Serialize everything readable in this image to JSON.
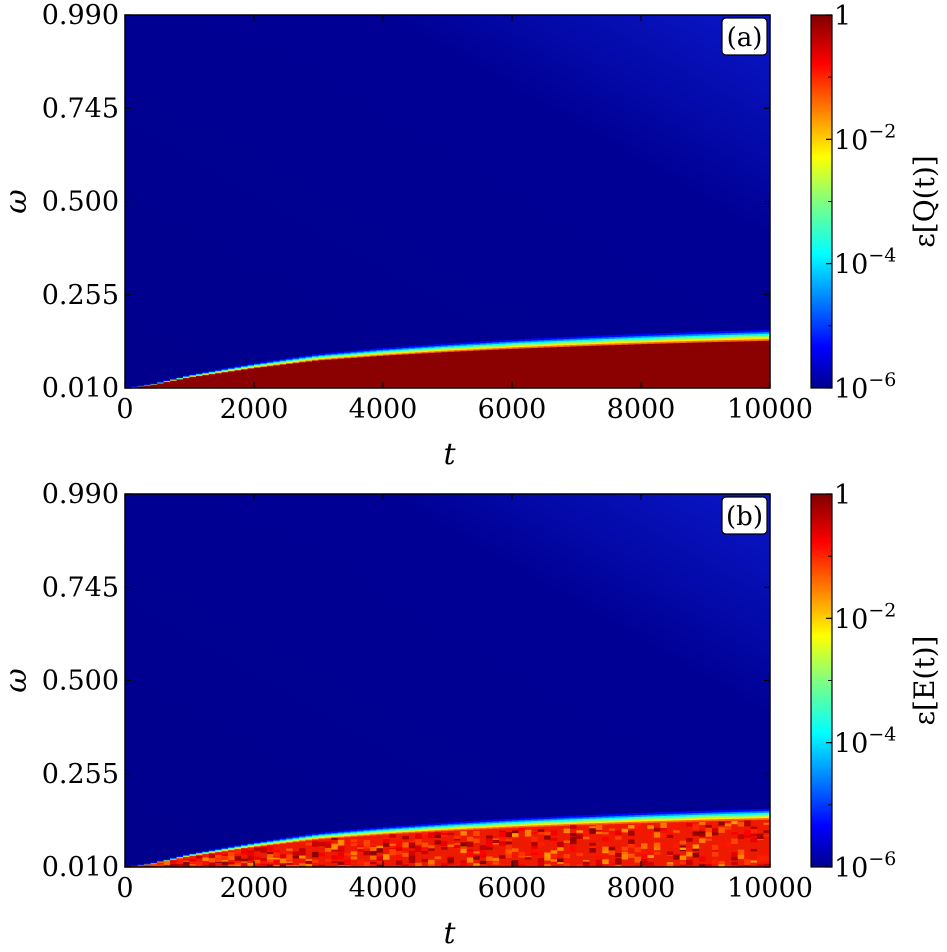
{
  "chart_data": [
    {
      "type": "heatmap",
      "panel_label": "(a)",
      "xlabel": "t",
      "ylabel": "ω",
      "xlim": [
        0,
        10000
      ],
      "ylim": [
        0.01,
        0.99
      ],
      "xticks": [
        "0",
        "2000",
        "4000",
        "6000",
        "8000",
        "10000"
      ],
      "yticks": [
        "0.010",
        "0.255",
        "0.500",
        "0.745",
        "0.990"
      ],
      "colorbar": {
        "label": "ε[Q(t)]",
        "scale": "log",
        "range": [
          1e-06,
          1
        ],
        "colormap": "jet",
        "ticks": [
          {
            "base": "1",
            "exp": ""
          },
          {
            "base": "10",
            "exp": "−2"
          },
          {
            "base": "10",
            "exp": "−4"
          },
          {
            "base": "10",
            "exp": "−6"
          }
        ]
      },
      "error_front": {
        "t": [
          0,
          400,
          1000,
          2000,
          3000,
          4000,
          5000,
          6000,
          7000,
          8000,
          9000,
          10000
        ],
        "omega_boundary": [
          0.01,
          0.02,
          0.045,
          0.075,
          0.1,
          0.115,
          0.127,
          0.137,
          0.145,
          0.152,
          0.158,
          0.163
        ]
      },
      "noisy": false
    },
    {
      "type": "heatmap",
      "panel_label": "(b)",
      "xlabel": "t",
      "ylabel": "ω",
      "xlim": [
        0,
        10000
      ],
      "ylim": [
        0.01,
        0.99
      ],
      "xticks": [
        "0",
        "2000",
        "4000",
        "6000",
        "8000",
        "10000"
      ],
      "yticks": [
        "0.010",
        "0.255",
        "0.500",
        "0.745",
        "0.990"
      ],
      "colorbar": {
        "label": "ε[E(t)]",
        "scale": "log",
        "range": [
          1e-06,
          1
        ],
        "colormap": "jet",
        "ticks": [
          {
            "base": "1",
            "exp": ""
          },
          {
            "base": "10",
            "exp": "−2"
          },
          {
            "base": "10",
            "exp": "−4"
          },
          {
            "base": "10",
            "exp": "−6"
          }
        ]
      },
      "error_front": {
        "t": [
          0,
          400,
          1000,
          2000,
          3000,
          4000,
          5000,
          6000,
          7000,
          8000,
          9000,
          10000
        ],
        "omega_boundary": [
          0.01,
          0.02,
          0.045,
          0.075,
          0.1,
          0.115,
          0.127,
          0.137,
          0.145,
          0.152,
          0.158,
          0.163
        ]
      },
      "noisy": true
    }
  ]
}
